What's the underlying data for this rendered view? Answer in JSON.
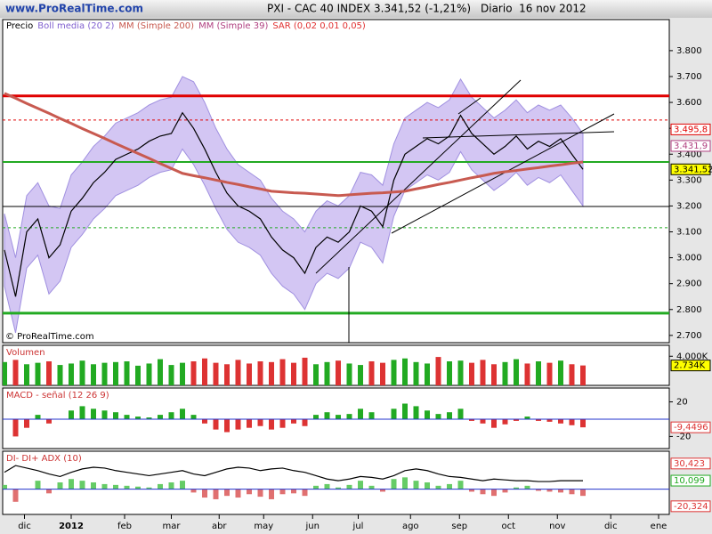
{
  "header": {
    "site": "www.ProRealTime.com",
    "instrument": "PXI - CAC 40 INDEX",
    "quote": "3.341,52 (-1,21%)",
    "period": "Diario  16 nov 2012"
  },
  "chart_data": [
    {
      "type": "line",
      "copyright": "© ProRealTime.com",
      "xlim": [
        0,
        59.6
      ],
      "xticks": [
        {
          "value": 1.8,
          "label": "dic"
        },
        {
          "value": 6.0,
          "label": "2012"
        },
        {
          "value": 10.8,
          "label": "feb"
        },
        {
          "value": 15.0,
          "label": "mar"
        },
        {
          "value": 19.3,
          "label": "abr"
        },
        {
          "value": 23.3,
          "label": "may"
        },
        {
          "value": 27.7,
          "label": "jun"
        },
        {
          "value": 31.8,
          "label": "jul"
        },
        {
          "value": 36.5,
          "label": "ago"
        },
        {
          "value": 40.9,
          "label": "sep"
        },
        {
          "value": 45.3,
          "label": "oct"
        },
        {
          "value": 49.7,
          "label": "nov"
        },
        {
          "value": 54.5,
          "label": "dic"
        },
        {
          "value": 58.8,
          "label": "ene"
        }
      ],
      "ylim": [
        2672,
        3920
      ],
      "yticks": [
        {
          "value": 2700,
          "label": "2.700"
        },
        {
          "value": 2800,
          "label": "2.800"
        },
        {
          "value": 2900,
          "label": "2.900"
        },
        {
          "value": 3000,
          "label": "3.000"
        },
        {
          "value": 3100,
          "label": "3.100"
        },
        {
          "value": 3200,
          "label": "3.200"
        },
        {
          "value": 3300,
          "label": "3.300"
        },
        {
          "value": 3400,
          "label": "3.400"
        },
        {
          "value": 3500,
          "label": "3.500"
        },
        {
          "value": 3600,
          "label": "3.600"
        },
        {
          "value": 3700,
          "label": "3.700"
        },
        {
          "value": 3800,
          "label": "3.800"
        }
      ],
      "band": {
        "name": "Boll media (20 2)",
        "color": "#c8b8f0",
        "upper": [
          3170,
          3000,
          3240,
          3290,
          3200,
          3190,
          3320,
          3370,
          3430,
          3470,
          3520,
          3540,
          3560,
          3590,
          3610,
          3620,
          3700,
          3680,
          3600,
          3500,
          3420,
          3360,
          3330,
          3300,
          3230,
          3180,
          3150,
          3100,
          3180,
          3220,
          3200,
          3240,
          3330,
          3320,
          3280,
          3440,
          3540,
          3570,
          3600,
          3580,
          3610,
          3690,
          3620,
          3580,
          3540,
          3570,
          3610,
          3560,
          3590,
          3570,
          3590,
          3540,
          3480
        ],
        "lower": [
          2890,
          2710,
          2960,
          3010,
          2860,
          2910,
          3040,
          3090,
          3150,
          3190,
          3240,
          3260,
          3280,
          3310,
          3330,
          3340,
          3420,
          3360,
          3280,
          3190,
          3110,
          3060,
          3040,
          3010,
          2940,
          2890,
          2860,
          2800,
          2900,
          2940,
          2920,
          2960,
          3060,
          3040,
          2980,
          3160,
          3260,
          3290,
          3320,
          3300,
          3330,
          3410,
          3340,
          3300,
          3260,
          3290,
          3330,
          3280,
          3310,
          3290,
          3320,
          3260,
          3200
        ]
      },
      "series": [
        {
          "name": "Precio",
          "color": "#000000",
          "width": 1.2,
          "values": [
            3030,
            2850,
            3100,
            3150,
            3000,
            3050,
            3180,
            3230,
            3290,
            3330,
            3380,
            3400,
            3420,
            3450,
            3470,
            3480,
            3560,
            3500,
            3420,
            3330,
            3250,
            3200,
            3180,
            3150,
            3080,
            3030,
            3000,
            2940,
            3040,
            3080,
            3060,
            3100,
            3200,
            3180,
            3120,
            3300,
            3400,
            3430,
            3460,
            3440,
            3470,
            3550,
            3480,
            3440,
            3400,
            3430,
            3470,
            3420,
            3450,
            3430,
            3460,
            3400,
            3341.52
          ]
        },
        {
          "name": "MM (Simple 200)",
          "color": "#c85a50",
          "width": 3,
          "values": [
            3635,
            3616,
            3596,
            3577,
            3558,
            3538,
            3519,
            3499,
            3480,
            3461,
            3441,
            3422,
            3403,
            3384,
            3364,
            3345,
            3326,
            3317,
            3309,
            3300,
            3291,
            3283,
            3274,
            3266,
            3257,
            3254,
            3251,
            3249,
            3246,
            3243,
            3240,
            3243,
            3246,
            3249,
            3251,
            3254,
            3257,
            3266,
            3274,
            3283,
            3291,
            3300,
            3309,
            3317,
            3326,
            3332,
            3337,
            3343,
            3348,
            3354,
            3359,
            3365,
            3370
          ]
        }
      ],
      "legend_extra": [
        {
          "name": "MM (Simple 39)",
          "color": "#b04080"
        },
        {
          "name": "SAR (0,02 0,01 0,05)",
          "color": "#e03030"
        }
      ],
      "levels": [
        {
          "value": 3625,
          "color": "#e00000",
          "width": 3,
          "dashed": false
        },
        {
          "value": 3370,
          "color": "#22aa22",
          "width": 2,
          "dashed": false
        },
        {
          "value": 2786,
          "color": "#22aa22",
          "width": 3,
          "dashed": false
        },
        {
          "value": 3198,
          "color": "#000000",
          "width": 1,
          "dashed": false
        },
        {
          "value": 3116,
          "color": "#22aa22",
          "width": 1,
          "dashed": true
        },
        {
          "value": 3532,
          "color": "#e00000",
          "width": 1,
          "dashed": true
        }
      ],
      "tags": [
        {
          "value": 3495.8,
          "label": "3.495,8",
          "color": "#ffffff",
          "text_color": "#e00000"
        },
        {
          "value": 3431.9,
          "label": "3.431,9",
          "color": "#ffffff",
          "text_color": "#b04080"
        },
        {
          "value": 3341.52,
          "label": "3.341,52",
          "color": "#ffff00",
          "text_color": "#000000"
        }
      ]
    },
    {
      "type": "bar",
      "title": "Volumen",
      "title_color": "#cc3333",
      "up_color": "#22aa22",
      "down_color": "#dd3333",
      "ylim": [
        0,
        5500
      ],
      "yticks": [
        {
          "value": 4000,
          "label": "4.000K"
        }
      ],
      "values": [
        3200,
        3500,
        2900,
        3100,
        3300,
        2800,
        3000,
        3400,
        2900,
        3100,
        3200,
        3300,
        2700,
        3000,
        3600,
        2800,
        3100,
        3300,
        3700,
        3100,
        2900,
        3500,
        3000,
        3300,
        3200,
        3600,
        3100,
        3800,
        2900,
        3200,
        3400,
        3000,
        2800,
        3300,
        3100,
        3500,
        3700,
        3200,
        3000,
        3900,
        3300,
        3400,
        3100,
        3500,
        2900,
        3200,
        3600,
        3000,
        3300,
        3100,
        3400,
        2900,
        2734
      ],
      "tags": [
        {
          "value": 2734,
          "label": "2.734K",
          "color": "#ffff00",
          "text_color": "#000000"
        }
      ]
    },
    {
      "type": "bar",
      "title": "MACD - señal (12 26 9)",
      "title_color": "#cc3333",
      "up_color": "#22aa22",
      "down_color": "#dd3333",
      "ylim": [
        -34,
        36
      ],
      "yticks": [
        20,
        -20
      ],
      "values": [
        0,
        -20,
        -10,
        5,
        -5,
        0,
        10,
        15,
        12,
        10,
        8,
        5,
        3,
        2,
        5,
        8,
        12,
        5,
        -5,
        -12,
        -15,
        -12,
        -10,
        -8,
        -12,
        -10,
        -5,
        -8,
        5,
        8,
        5,
        6,
        12,
        8,
        0,
        12,
        18,
        15,
        10,
        6,
        8,
        12,
        -2,
        -5,
        -10,
        -6,
        -2,
        3,
        -2,
        -3,
        -5,
        -7,
        -9.4496
      ],
      "tags": [
        {
          "value": -9.4496,
          "label": "-9,4496",
          "color": "#ffffff",
          "text_color": "#dd3333"
        }
      ]
    },
    {
      "type": "bar",
      "title": "DI- DI+ ADX (10)",
      "title_color": "#cc3333",
      "up_color": "#66cc66",
      "down_color": "#e07070",
      "ylim": [
        -30,
        45
      ],
      "values": [
        5,
        -15,
        0,
        10,
        -5,
        8,
        12,
        10,
        8,
        6,
        5,
        4,
        3,
        2,
        6,
        8,
        10,
        -4,
        -10,
        -12,
        -8,
        -10,
        -6,
        -9,
        -12,
        -6,
        -5,
        -8,
        4,
        6,
        2,
        5,
        10,
        4,
        -3,
        12,
        14,
        10,
        8,
        4,
        6,
        10,
        -3,
        -6,
        -8,
        -4,
        2,
        4,
        -2,
        -3,
        -4,
        -6,
        -8
      ],
      "line": {
        "name": "ADX",
        "color": "#000000",
        "values": [
          20,
          28,
          25,
          22,
          18,
          15,
          20,
          24,
          26,
          25,
          22,
          20,
          18,
          16,
          18,
          20,
          22,
          18,
          16,
          20,
          24,
          26,
          25,
          22,
          24,
          25,
          22,
          20,
          16,
          12,
          10,
          12,
          15,
          14,
          12,
          16,
          22,
          24,
          22,
          18,
          15,
          14,
          12,
          10,
          12,
          11,
          10,
          10,
          9,
          9,
          10,
          10,
          10
        ]
      },
      "tags": [
        {
          "value": 30.423,
          "label": "30,423",
          "color": "#ffffff",
          "text_color": "#dd3333"
        },
        {
          "value": 10.099,
          "label": "10,099",
          "color": "#ffffff",
          "text_color": "#22aa22"
        },
        {
          "value": -20.324,
          "label": "-20,324",
          "color": "#ffffff",
          "text_color": "#dd3333"
        }
      ]
    }
  ]
}
